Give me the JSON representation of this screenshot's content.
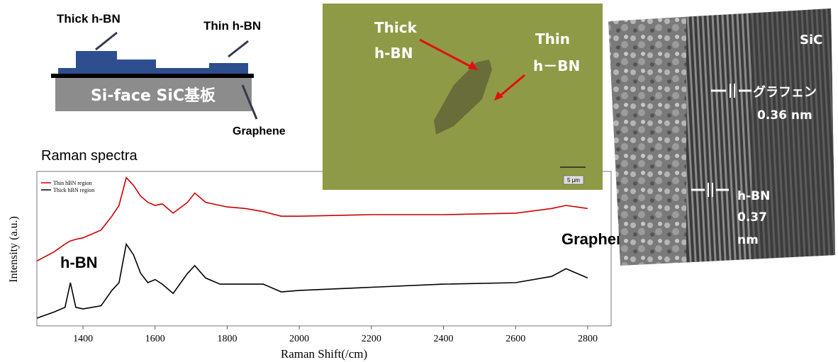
{
  "schematic": {
    "thick_label": "Thick h-BN",
    "thin_label": "Thin h-BN",
    "substrate_label": "Si-face SiC基板",
    "graphene_label": "Graphene"
  },
  "micrograph": {
    "thick_label": [
      "Thick",
      "h-BN"
    ],
    "thin_label": [
      "Thin",
      "h－BN"
    ],
    "scale_label": "5 μm"
  },
  "tem": {
    "sic_label": "SiC",
    "graphene_label": "グラフェン",
    "graphene_spacing": "0.36 nm",
    "hbn_label": [
      "h-BN",
      "0.37",
      "nm"
    ]
  },
  "chart_data": {
    "type": "line",
    "title": "Raman spectra",
    "x_label": "Raman Shift(/cm)",
    "y_label": "Intensity (a.u.)",
    "annotations": [
      "Graphene",
      "h-BN"
    ],
    "x": [
      1272,
      1320,
      1350,
      1365,
      1380,
      1400,
      1450,
      1480,
      1500,
      1520,
      1540,
      1560,
      1580,
      1600,
      1620,
      1650,
      1690,
      1710,
      1740,
      1780,
      1800,
      1850,
      1900,
      1950,
      2000,
      2200,
      2400,
      2600,
      2700,
      2740,
      2800
    ],
    "series": [
      {
        "name": "Thin hBN region",
        "color": "#cc0000",
        "values": [
          42,
          48,
          53,
          55,
          56,
          57,
          62,
          71,
          78,
          96,
          91,
          84,
          80,
          78,
          79,
          73,
          80,
          86,
          80,
          78,
          77,
          76,
          74,
          71,
          71,
          72,
          72,
          73,
          76,
          78,
          76
        ]
      },
      {
        "name": "Thick hBN region",
        "color": "#000000",
        "values": [
          5,
          9,
          12,
          28,
          12,
          11,
          13,
          23,
          28,
          53,
          46,
          34,
          28,
          30,
          27,
          21,
          34,
          39,
          31,
          27,
          27,
          27,
          27,
          22,
          23,
          25,
          27,
          28,
          32,
          37,
          31
        ]
      }
    ],
    "xlim": [
      1272,
      2865
    ],
    "ylim": [
      0,
      100
    ],
    "xticks": [
      1400,
      1600,
      1800,
      2000,
      2200,
      2400,
      2600,
      2800
    ],
    "legend": "upper left"
  }
}
